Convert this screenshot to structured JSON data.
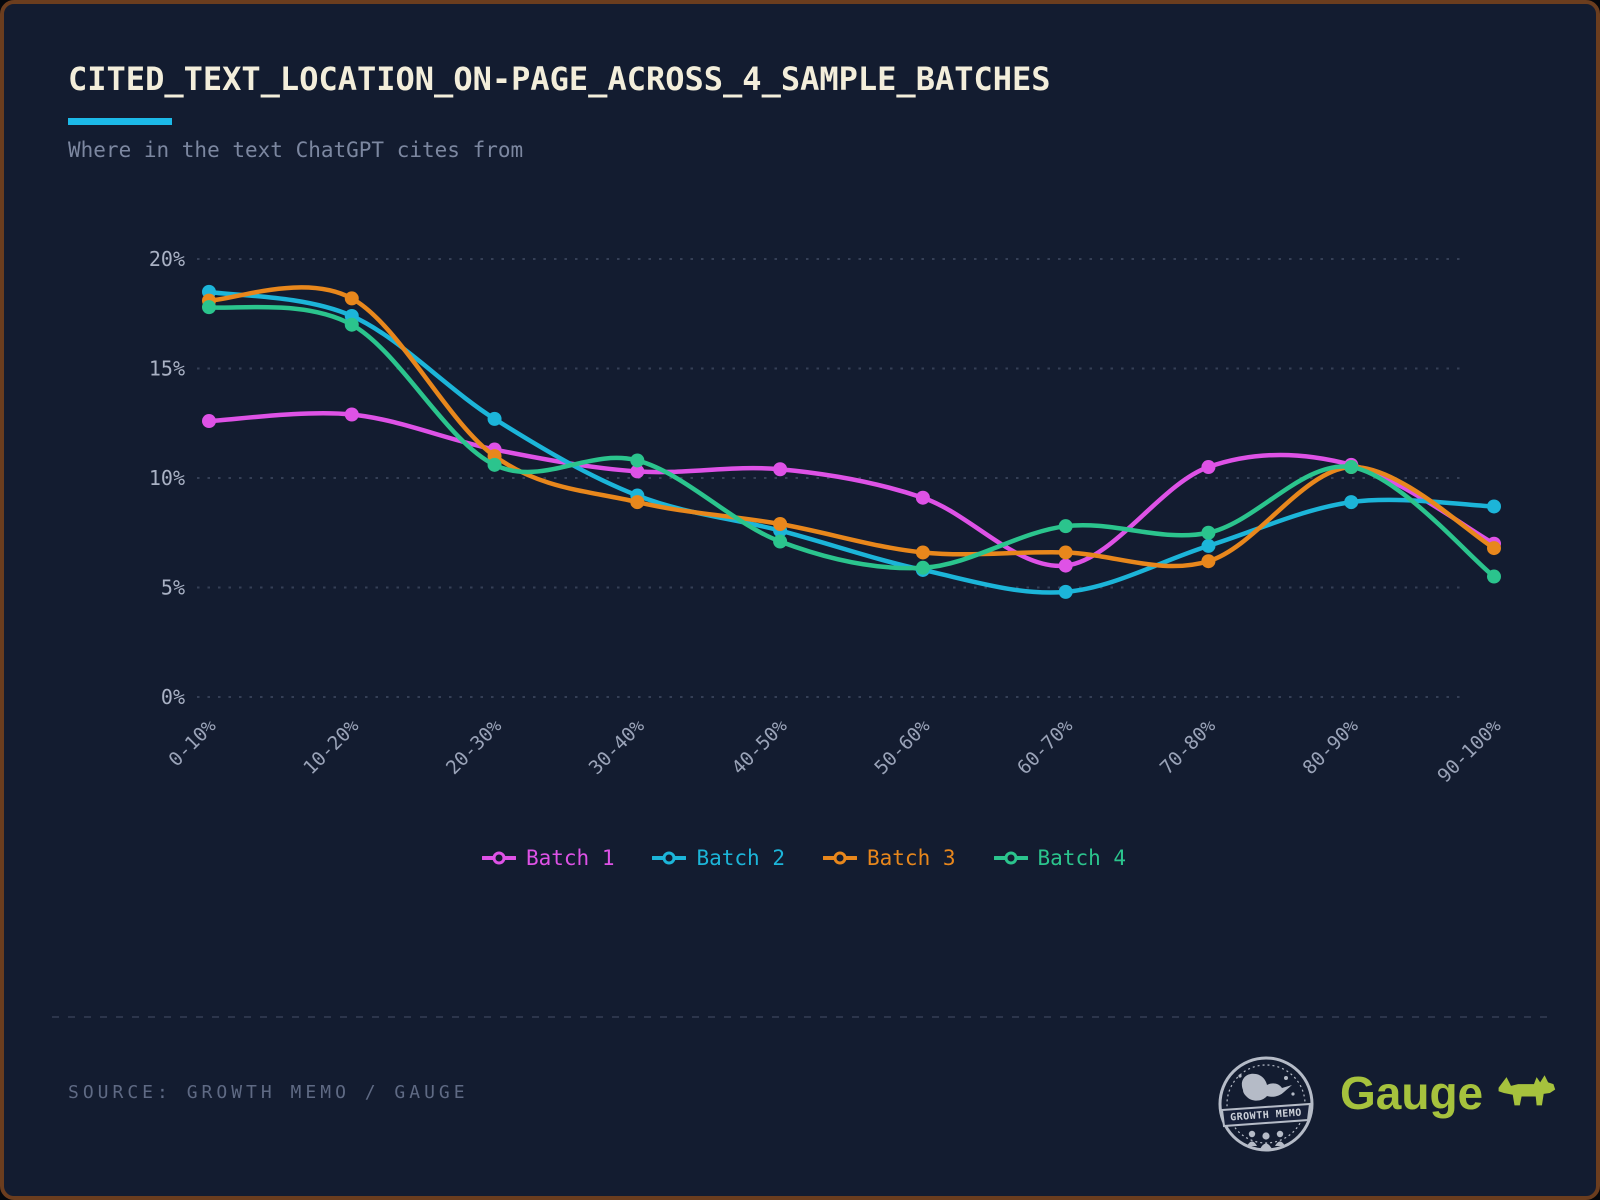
{
  "header": {
    "title": "CITED_TEXT_LOCATION_ON-PAGE_ACROSS_4_SAMPLE_BATCHES",
    "subtitle": "Where in the text ChatGPT cites from"
  },
  "footer": {
    "source": "SOURCE: GROWTH MEMO / GAUGE",
    "badge_text": "GROWTH MEMO",
    "brand": "Gauge"
  },
  "colors": {
    "background": "#131c30",
    "frame": "#6b3d1e",
    "title": "#f3eedb",
    "accent": "#1cb9e8",
    "subtitle": "#7c87a0",
    "axis_label": "#a9b1c4",
    "gridline": "#525d76",
    "source_text": "#5f6a84",
    "brand_green": "#a6c23d",
    "badge_gray": "#c3c9d4",
    "batch1": "#de52e6",
    "batch2": "#1cb5d9",
    "batch3": "#e8871c",
    "batch4": "#2bc48d"
  },
  "chart_data": {
    "type": "line",
    "title": "CITED_TEXT_LOCATION_ON-PAGE_ACROSS_4_SAMPLE_BATCHES",
    "subtitle": "Where in the text ChatGPT cites from",
    "categories": [
      "0-10%",
      "10-20%",
      "20-30%",
      "30-40%",
      "40-50%",
      "50-60%",
      "60-70%",
      "70-80%",
      "80-90%",
      "90-100%"
    ],
    "series": [
      {
        "name": "Batch 1",
        "color": "#de52e6",
        "values": [
          12.6,
          12.9,
          11.3,
          10.3,
          10.4,
          9.1,
          6.0,
          10.5,
          10.6,
          7.0
        ]
      },
      {
        "name": "Batch 2",
        "color": "#1cb5d9",
        "values": [
          18.5,
          17.4,
          12.7,
          9.2,
          7.6,
          5.8,
          4.8,
          6.9,
          8.9,
          8.7
        ]
      },
      {
        "name": "Batch 3",
        "color": "#e8871c",
        "values": [
          18.1,
          18.2,
          11.0,
          8.9,
          7.9,
          6.6,
          6.6,
          6.2,
          10.5,
          6.8
        ]
      },
      {
        "name": "Batch 4",
        "color": "#2bc48d",
        "values": [
          17.8,
          17.0,
          10.6,
          10.8,
          7.1,
          5.9,
          7.8,
          7.5,
          10.5,
          5.5
        ]
      }
    ],
    "xlabel": "",
    "ylabel": "",
    "ylim": [
      0,
      20
    ],
    "yticks": [
      0,
      5,
      10,
      15,
      20
    ],
    "ytick_suffix": "%",
    "grid": "dotted horizontal gridlines",
    "legend_position": "bottom",
    "marker": "filled circle",
    "line_style": "smooth"
  }
}
